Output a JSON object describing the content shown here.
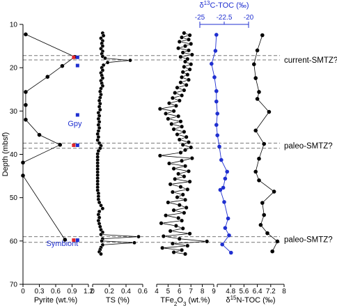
{
  "chart_data": {
    "type": "scatter",
    "y_axis": {
      "label": "Depth (mbsf)",
      "range": [
        10,
        70
      ],
      "ticks": [
        10,
        20,
        30,
        40,
        50,
        60,
        70
      ],
      "inverted": true
    },
    "zones": [
      {
        "label": "current-SMTZ?",
        "depths": [
          17.2,
          18.2
        ],
        "label_depth": 18.2
      },
      {
        "label": "paleo-SMTZ?",
        "depths": [
          37.4,
          38.6
        ],
        "label_depth": 38.0
      },
      {
        "label": "paleo-SMTZ?",
        "depths": [
          59.0,
          60.3
        ],
        "label_depth": 59.6
      }
    ],
    "panels": [
      {
        "id": "pyrite",
        "xlabel": "Pyrite (wt.%)",
        "range": [
          0,
          1.2
        ],
        "ticks": [
          0,
          0.3,
          0.6,
          0.9,
          1.2
        ],
        "tick_labels": [
          "0",
          "0.3",
          "0.6",
          "0.9",
          "1.2"
        ],
        "color": "#000000",
        "points": [
          [
            0.05,
            12.3
          ],
          [
            0.95,
            17.5
          ],
          [
            0.72,
            19.6
          ],
          [
            0.45,
            22.1
          ],
          [
            0.05,
            25.6
          ],
          [
            0.05,
            28.6
          ],
          [
            0.05,
            32.0
          ],
          [
            0.3,
            35.5
          ],
          [
            0.68,
            37.8
          ],
          [
            0.0,
            41.9
          ],
          [
            0.0,
            44.9
          ],
          [
            0.77,
            59.7
          ]
        ]
      },
      {
        "id": "ts",
        "xlabel": "TS (%)",
        "range": [
          0,
          0.6
        ],
        "ticks": [
          0,
          0.2,
          0.4,
          0.6
        ],
        "tick_labels": [
          "0",
          "0.2",
          "0.4",
          "0.6"
        ],
        "color": "#000000",
        "points": [
          [
            0.12,
            12.0
          ],
          [
            0.13,
            12.6
          ],
          [
            0.1,
            13.2
          ],
          [
            0.12,
            13.8
          ],
          [
            0.11,
            14.4
          ],
          [
            0.12,
            15.0
          ],
          [
            0.1,
            15.6
          ],
          [
            0.12,
            16.2
          ],
          [
            0.11,
            16.8
          ],
          [
            0.12,
            17.4
          ],
          [
            0.15,
            17.8
          ],
          [
            0.45,
            18.3
          ],
          [
            0.18,
            18.8
          ],
          [
            0.13,
            19.4
          ],
          [
            0.11,
            20.0
          ],
          [
            0.12,
            20.6
          ],
          [
            0.1,
            21.2
          ],
          [
            0.11,
            21.8
          ],
          [
            0.12,
            22.4
          ],
          [
            0.1,
            23.0
          ],
          [
            0.11,
            23.6
          ],
          [
            0.12,
            24.2
          ],
          [
            0.1,
            24.8
          ],
          [
            0.09,
            25.5
          ],
          [
            0.1,
            26.2
          ],
          [
            0.09,
            26.9
          ],
          [
            0.08,
            27.6
          ],
          [
            0.09,
            28.3
          ],
          [
            0.08,
            29.0
          ],
          [
            0.09,
            29.7
          ],
          [
            0.07,
            30.4
          ],
          [
            0.08,
            31.1
          ],
          [
            0.07,
            31.8
          ],
          [
            0.08,
            32.5
          ],
          [
            0.07,
            33.2
          ],
          [
            0.08,
            33.9
          ],
          [
            0.07,
            34.6
          ],
          [
            0.06,
            35.3
          ],
          [
            0.07,
            36.0
          ],
          [
            0.06,
            36.7
          ],
          [
            0.08,
            37.4
          ],
          [
            0.1,
            38.0
          ],
          [
            0.09,
            38.6
          ],
          [
            0.07,
            39.2
          ],
          [
            0.06,
            39.9
          ],
          [
            0.06,
            40.6
          ],
          [
            0.06,
            41.3
          ],
          [
            0.06,
            42.0
          ],
          [
            0.06,
            42.7
          ],
          [
            0.06,
            43.4
          ],
          [
            0.06,
            44.1
          ],
          [
            0.06,
            44.8
          ],
          [
            0.06,
            45.5
          ],
          [
            0.06,
            46.2
          ],
          [
            0.06,
            46.9
          ],
          [
            0.06,
            47.6
          ],
          [
            0.06,
            48.3
          ],
          [
            0.07,
            49.0
          ],
          [
            0.07,
            49.7
          ],
          [
            0.07,
            50.4
          ],
          [
            0.08,
            51.1
          ],
          [
            0.1,
            51.8
          ],
          [
            0.12,
            52.5
          ],
          [
            0.08,
            53.2
          ],
          [
            0.07,
            53.9
          ],
          [
            0.08,
            54.6
          ],
          [
            0.07,
            55.3
          ],
          [
            0.08,
            56.0
          ],
          [
            0.09,
            56.7
          ],
          [
            0.1,
            57.4
          ],
          [
            0.12,
            58.0
          ],
          [
            0.1,
            58.5
          ],
          [
            0.55,
            59.0
          ],
          [
            0.12,
            59.5
          ],
          [
            0.11,
            60.0
          ],
          [
            0.5,
            60.4
          ],
          [
            0.12,
            60.9
          ],
          [
            0.1,
            61.5
          ],
          [
            0.09,
            62.0
          ],
          [
            0.08,
            62.5
          ],
          [
            0.1,
            63.0
          ]
        ]
      },
      {
        "id": "tfe",
        "xlabel": "TFe2O3 (wt.%)",
        "range": [
          4,
          9
        ],
        "ticks": [
          4,
          5,
          6,
          7,
          8,
          9
        ],
        "tick_labels": [
          "4",
          "5",
          "6",
          "7",
          "8",
          "9"
        ],
        "color": "#000000",
        "points": [
          [
            6.4,
            12.0
          ],
          [
            6.9,
            12.5
          ],
          [
            6.2,
            13.0
          ],
          [
            6.8,
            13.5
          ],
          [
            6.0,
            14.0
          ],
          [
            7.0,
            14.5
          ],
          [
            6.5,
            15.0
          ],
          [
            5.9,
            15.5
          ],
          [
            6.8,
            16.0
          ],
          [
            6.3,
            16.5
          ],
          [
            7.1,
            17.0
          ],
          [
            6.1,
            17.5
          ],
          [
            6.7,
            18.0
          ],
          [
            6.5,
            18.6
          ],
          [
            7.0,
            19.2
          ],
          [
            6.4,
            19.8
          ],
          [
            6.9,
            20.4
          ],
          [
            6.3,
            21.0
          ],
          [
            6.7,
            21.6
          ],
          [
            6.2,
            22.2
          ],
          [
            6.8,
            22.8
          ],
          [
            6.1,
            23.4
          ],
          [
            6.6,
            24.0
          ],
          [
            5.8,
            24.6
          ],
          [
            6.4,
            25.2
          ],
          [
            5.6,
            25.8
          ],
          [
            6.2,
            26.4
          ],
          [
            5.4,
            27.0
          ],
          [
            6.0,
            27.6
          ],
          [
            5.1,
            28.2
          ],
          [
            5.7,
            28.8
          ],
          [
            4.3,
            29.5
          ],
          [
            5.5,
            30.0
          ],
          [
            4.8,
            30.6
          ],
          [
            5.9,
            31.2
          ],
          [
            5.0,
            31.8
          ],
          [
            6.1,
            32.4
          ],
          [
            5.3,
            33.0
          ],
          [
            6.2,
            33.6
          ],
          [
            5.5,
            34.2
          ],
          [
            6.4,
            34.8
          ],
          [
            5.8,
            35.4
          ],
          [
            6.6,
            36.0
          ],
          [
            6.0,
            36.6
          ],
          [
            6.8,
            37.2
          ],
          [
            6.3,
            37.8
          ],
          [
            7.0,
            38.4
          ],
          [
            6.5,
            39.0
          ],
          [
            6.1,
            39.6
          ],
          [
            4.3,
            40.3
          ],
          [
            7.1,
            40.9
          ],
          [
            6.2,
            41.5
          ],
          [
            5.1,
            42.1
          ],
          [
            6.5,
            42.7
          ],
          [
            5.5,
            43.3
          ],
          [
            6.8,
            43.9
          ],
          [
            5.9,
            44.5
          ],
          [
            6.4,
            45.1
          ],
          [
            5.6,
            45.7
          ],
          [
            6.9,
            46.3
          ],
          [
            5.2,
            46.9
          ],
          [
            6.1,
            47.5
          ],
          [
            6.7,
            48.1
          ],
          [
            5.4,
            48.7
          ],
          [
            6.3,
            49.3
          ],
          [
            5.8,
            49.9
          ],
          [
            6.5,
            50.5
          ],
          [
            5.0,
            51.1
          ],
          [
            6.0,
            51.7
          ],
          [
            6.6,
            52.3
          ],
          [
            5.5,
            52.9
          ],
          [
            6.4,
            53.5
          ],
          [
            4.8,
            54.1
          ],
          [
            5.9,
            54.7
          ],
          [
            6.2,
            55.3
          ],
          [
            4.4,
            55.9
          ],
          [
            5.7,
            56.5
          ],
          [
            6.3,
            57.1
          ],
          [
            5.2,
            57.7
          ],
          [
            6.9,
            58.3
          ],
          [
            4.6,
            58.9
          ],
          [
            6.0,
            59.5
          ],
          [
            8.4,
            60.1
          ],
          [
            5.4,
            60.6
          ],
          [
            6.7,
            61.1
          ],
          [
            4.5,
            61.6
          ],
          [
            6.2,
            62.1
          ],
          [
            5.5,
            62.6
          ],
          [
            6.5,
            63.0
          ]
        ]
      },
      {
        "id": "n15",
        "xlabel": "δ15N-TOC (‰)",
        "range": [
          4.0,
          8.0
        ],
        "ticks": [
          4.0,
          4.8,
          5.6,
          6.4,
          7.2,
          8.0
        ],
        "tick_labels": [
          "",
          "4.8",
          "5.6",
          "6.4",
          "7.2",
          "8"
        ],
        "color": "#000000",
        "points": [
          [
            6.7,
            12.5
          ],
          [
            6.4,
            16.0
          ],
          [
            6.2,
            19.2
          ],
          [
            6.3,
            22.4
          ],
          [
            6.5,
            25.6
          ],
          [
            6.4,
            27.2
          ],
          [
            7.1,
            30.2
          ],
          [
            6.3,
            34.5
          ],
          [
            6.8,
            37.6
          ],
          [
            6.5,
            41.0
          ],
          [
            6.3,
            44.0
          ],
          [
            6.5,
            46.0
          ],
          [
            7.4,
            48.6
          ],
          [
            6.7,
            51.2
          ],
          [
            6.8,
            54.0
          ],
          [
            6.6,
            56.3
          ],
          [
            7.0,
            58.2
          ],
          [
            7.6,
            60.1
          ],
          [
            7.3,
            62.4
          ]
        ]
      },
      {
        "id": "c13",
        "xlabel": "δ13C-TOC (‰)",
        "axis_position": "top",
        "range": [
          -25,
          -20
        ],
        "ticks": [
          -25,
          -22.5,
          -20
        ],
        "tick_labels": [
          "-25",
          "-22.5",
          "-20"
        ],
        "color": "#1f2fd0",
        "points": [
          [
            -23.3,
            12.4
          ],
          [
            -23.4,
            16.1
          ],
          [
            -23.8,
            19.1
          ],
          [
            -23.5,
            22.2
          ],
          [
            -23.3,
            25.4
          ],
          [
            -23.3,
            27.8
          ],
          [
            -23.2,
            30.6
          ],
          [
            -23.3,
            33.2
          ],
          [
            -23.2,
            35.6
          ],
          [
            -23.0,
            38.2
          ],
          [
            -22.8,
            41.3
          ],
          [
            -22.2,
            44.0
          ],
          [
            -22.4,
            45.6
          ],
          [
            -22.6,
            47.7
          ],
          [
            -22.9,
            48.2
          ],
          [
            -22.5,
            51.0
          ],
          [
            -22.1,
            54.8
          ],
          [
            -22.4,
            57.0
          ],
          [
            -22.0,
            58.7
          ],
          [
            -22.7,
            60.8
          ],
          [
            -21.8,
            62.7
          ]
        ]
      }
    ],
    "annotations": [
      {
        "label": "Gpy",
        "depth": 32.0
      },
      {
        "label": "Symbiont",
        "depth": 61.0
      }
    ],
    "marker_squares": [
      {
        "color": "#e0262b",
        "x": 0.93,
        "depth": 17.6
      },
      {
        "color": "#1f2fd0",
        "x": 1.0,
        "depth": 17.6
      },
      {
        "color": "#1f2fd0",
        "x": 1.0,
        "depth": 19.5
      },
      {
        "color": "#1f2fd0",
        "x": 1.0,
        "depth": 30.9
      },
      {
        "color": "#e0262b",
        "x": 0.93,
        "depth": 37.9
      },
      {
        "color": "#1f2fd0",
        "x": 1.0,
        "depth": 37.9
      },
      {
        "color": "#e0262b",
        "x": 0.93,
        "depth": 59.8
      },
      {
        "color": "#1f2fd0",
        "x": 1.0,
        "depth": 59.8
      }
    ]
  }
}
